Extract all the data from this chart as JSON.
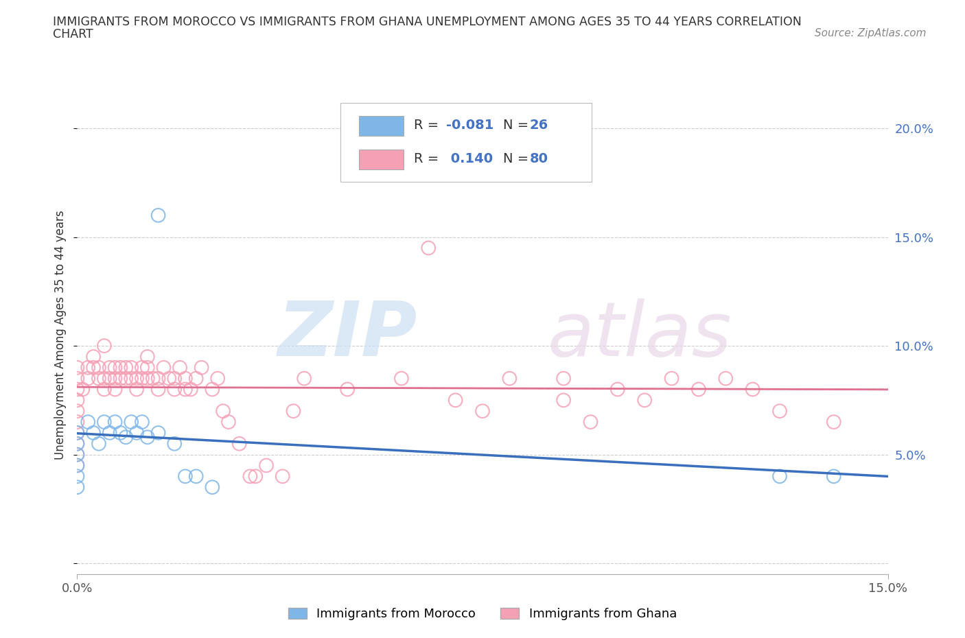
{
  "title_line1": "IMMIGRANTS FROM MOROCCO VS IMMIGRANTS FROM GHANA UNEMPLOYMENT AMONG AGES 35 TO 44 YEARS CORRELATION",
  "title_line2": "CHART",
  "source": "Source: ZipAtlas.com",
  "ylabel": "Unemployment Among Ages 35 to 44 years",
  "xlim": [
    0.0,
    0.15
  ],
  "ylim": [
    -0.005,
    0.215
  ],
  "plot_ylim": [
    0.0,
    0.21
  ],
  "xtick_positions": [
    0.0,
    0.15
  ],
  "xticklabels": [
    "0.0%",
    "15.0%"
  ],
  "ytick_positions": [
    0.0,
    0.05,
    0.1,
    0.15,
    0.2
  ],
  "yticklabels_right": [
    "",
    "5.0%",
    "10.0%",
    "15.0%",
    "20.0%"
  ],
  "morocco_color": "#7eb6e8",
  "morocco_edge": "#5b9bd5",
  "ghana_color": "#f5a0b5",
  "ghana_edge": "#e07090",
  "morocco_line_color": "#3a6fbd",
  "ghana_line_color": "#e07090",
  "morocco_R": -0.081,
  "morocco_N": 26,
  "ghana_R": 0.14,
  "ghana_N": 80,
  "legend_morocco_label": "Immigrants from Morocco",
  "legend_ghana_label": "Immigrants from Ghana",
  "legend_text_color": "#4472c4",
  "grid_color": "#cccccc",
  "morocco_x": [
    0.0,
    0.0,
    0.0,
    0.0,
    0.0,
    0.0,
    0.002,
    0.003,
    0.004,
    0.005,
    0.006,
    0.007,
    0.008,
    0.009,
    0.01,
    0.011,
    0.012,
    0.013,
    0.015,
    0.015,
    0.018,
    0.02,
    0.022,
    0.025,
    0.13,
    0.14
  ],
  "morocco_y": [
    0.06,
    0.055,
    0.05,
    0.045,
    0.04,
    0.035,
    0.065,
    0.06,
    0.055,
    0.065,
    0.06,
    0.065,
    0.06,
    0.058,
    0.065,
    0.06,
    0.065,
    0.058,
    0.16,
    0.06,
    0.055,
    0.04,
    0.04,
    0.035,
    0.04,
    0.04
  ],
  "ghana_x": [
    0.0,
    0.0,
    0.0,
    0.0,
    0.0,
    0.0,
    0.0,
    0.0,
    0.0,
    0.0,
    0.001,
    0.002,
    0.002,
    0.003,
    0.003,
    0.004,
    0.004,
    0.005,
    0.005,
    0.005,
    0.006,
    0.006,
    0.007,
    0.007,
    0.007,
    0.008,
    0.008,
    0.009,
    0.009,
    0.01,
    0.01,
    0.011,
    0.011,
    0.012,
    0.012,
    0.013,
    0.013,
    0.013,
    0.014,
    0.015,
    0.015,
    0.016,
    0.017,
    0.018,
    0.018,
    0.019,
    0.02,
    0.02,
    0.021,
    0.022,
    0.023,
    0.025,
    0.026,
    0.027,
    0.028,
    0.03,
    0.032,
    0.033,
    0.035,
    0.038,
    0.04,
    0.042,
    0.05,
    0.055,
    0.06,
    0.065,
    0.07,
    0.075,
    0.08,
    0.09,
    0.09,
    0.095,
    0.1,
    0.105,
    0.11,
    0.115,
    0.12,
    0.125,
    0.13,
    0.14
  ],
  "ghana_y": [
    0.09,
    0.085,
    0.08,
    0.075,
    0.07,
    0.065,
    0.06,
    0.055,
    0.05,
    0.045,
    0.08,
    0.09,
    0.085,
    0.09,
    0.095,
    0.085,
    0.09,
    0.08,
    0.085,
    0.1,
    0.085,
    0.09,
    0.08,
    0.085,
    0.09,
    0.085,
    0.09,
    0.085,
    0.09,
    0.085,
    0.09,
    0.08,
    0.085,
    0.085,
    0.09,
    0.085,
    0.09,
    0.095,
    0.085,
    0.08,
    0.085,
    0.09,
    0.085,
    0.08,
    0.085,
    0.09,
    0.08,
    0.085,
    0.08,
    0.085,
    0.09,
    0.08,
    0.085,
    0.07,
    0.065,
    0.055,
    0.04,
    0.04,
    0.045,
    0.04,
    0.07,
    0.085,
    0.08,
    0.185,
    0.085,
    0.145,
    0.075,
    0.07,
    0.085,
    0.075,
    0.085,
    0.065,
    0.08,
    0.075,
    0.085,
    0.08,
    0.085,
    0.08,
    0.07,
    0.065
  ]
}
